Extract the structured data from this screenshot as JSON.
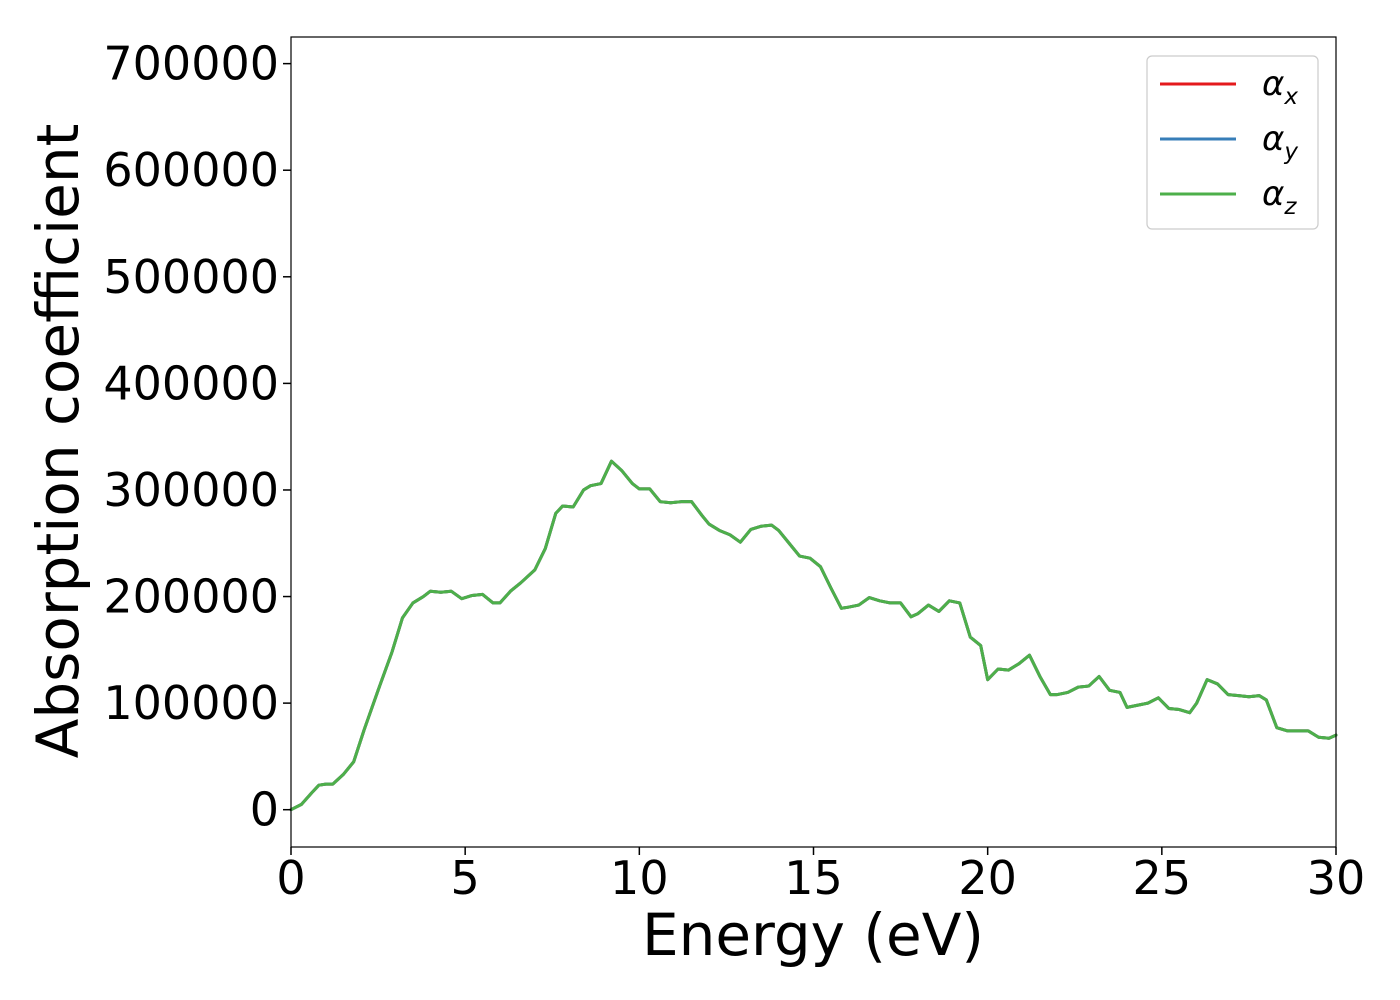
{
  "chart_data": {
    "type": "line",
    "title": "",
    "xlabel": "Energy (eV)",
    "ylabel": "Absorption coefficient",
    "xlim": [
      0,
      30
    ],
    "ylim": [
      -35000,
      725000
    ],
    "x_ticks": [
      0,
      5,
      10,
      15,
      20,
      25,
      30
    ],
    "y_ticks": [
      0,
      100000,
      200000,
      300000,
      400000,
      500000,
      600000,
      700000
    ],
    "grid": false,
    "legend_position": "top-right",
    "x": [
      0,
      0.3,
      0.6,
      0.8,
      1.0,
      1.2,
      1.5,
      1.8,
      2.1,
      2.5,
      2.9,
      3.2,
      3.5,
      3.8,
      4.0,
      4.3,
      4.6,
      4.9,
      5.2,
      5.5,
      5.8,
      6.0,
      6.3,
      6.6,
      7.0,
      7.3,
      7.6,
      7.8,
      8.1,
      8.4,
      8.6,
      8.9,
      9.2,
      9.5,
      9.8,
      10.0,
      10.3,
      10.6,
      10.9,
      11.2,
      11.5,
      11.8,
      12.0,
      12.3,
      12.6,
      12.9,
      13.2,
      13.5,
      13.8,
      14.0,
      14.3,
      14.6,
      14.9,
      15.2,
      15.5,
      15.8,
      16.0,
      16.3,
      16.6,
      16.9,
      17.2,
      17.5,
      17.8,
      18.0,
      18.3,
      18.6,
      18.9,
      19.2,
      19.5,
      19.8,
      20.0,
      20.3,
      20.6,
      20.9,
      21.2,
      21.5,
      21.8,
      22.0,
      22.3,
      22.6,
      22.9,
      23.2,
      23.5,
      23.8,
      24.0,
      24.3,
      24.6,
      24.9,
      25.2,
      25.5,
      25.8,
      26.0,
      26.3,
      26.6,
      26.9,
      27.2,
      27.5,
      27.8,
      28.0,
      28.3,
      28.6,
      28.9,
      29.2,
      29.5,
      29.8,
      30.0
    ],
    "series": [
      {
        "name": "α_x",
        "color": "#e41a1c",
        "values": [
          0,
          5000,
          16000,
          23000,
          24000,
          24000,
          33000,
          45000,
          75000,
          112000,
          148000,
          180000,
          194000,
          200000,
          205000,
          204000,
          205000,
          198000,
          201000,
          202000,
          194000,
          194000,
          205000,
          213000,
          225000,
          245000,
          278000,
          285000,
          284000,
          300000,
          304000,
          306000,
          327000,
          318000,
          306000,
          301000,
          301000,
          289000,
          288000,
          289000,
          289000,
          276000,
          268000,
          262000,
          258000,
          251000,
          263000,
          266000,
          267000,
          262000,
          250000,
          238000,
          236000,
          228000,
          208000,
          189000,
          190000,
          192000,
          199000,
          196000,
          194000,
          194000,
          181000,
          184000,
          192000,
          186000,
          196000,
          194000,
          162000,
          154000,
          122000,
          132000,
          131000,
          137000,
          145000,
          125000,
          108000,
          108000,
          110000,
          115000,
          116000,
          125000,
          112000,
          110000,
          96000,
          98000,
          100000,
          105000,
          95000,
          94000,
          91000,
          100000,
          122000,
          118000,
          108000,
          107000,
          106000,
          107000,
          103000,
          77000,
          74000,
          74000,
          74000,
          68000,
          67000,
          70000
        ]
      },
      {
        "name": "α_y",
        "color": "#377eb8",
        "values": [
          0,
          5000,
          16000,
          23000,
          24000,
          24000,
          33000,
          45000,
          75000,
          112000,
          148000,
          180000,
          194000,
          200000,
          205000,
          204000,
          205000,
          198000,
          201000,
          202000,
          194000,
          194000,
          205000,
          213000,
          225000,
          245000,
          278000,
          285000,
          284000,
          300000,
          304000,
          306000,
          327000,
          318000,
          306000,
          301000,
          301000,
          289000,
          288000,
          289000,
          289000,
          276000,
          268000,
          262000,
          258000,
          251000,
          263000,
          266000,
          267000,
          262000,
          250000,
          238000,
          236000,
          228000,
          208000,
          189000,
          190000,
          192000,
          199000,
          196000,
          194000,
          194000,
          181000,
          184000,
          192000,
          186000,
          196000,
          194000,
          162000,
          154000,
          122000,
          132000,
          131000,
          137000,
          145000,
          125000,
          108000,
          108000,
          110000,
          115000,
          116000,
          125000,
          112000,
          110000,
          96000,
          98000,
          100000,
          105000,
          95000,
          94000,
          91000,
          100000,
          122000,
          118000,
          108000,
          107000,
          106000,
          107000,
          103000,
          77000,
          74000,
          74000,
          74000,
          68000,
          67000,
          70000
        ]
      },
      {
        "name": "α_z",
        "color": "#4daf4a",
        "values": [
          0,
          5000,
          16000,
          23000,
          24000,
          24000,
          33000,
          45000,
          75000,
          112000,
          148000,
          180000,
          194000,
          200000,
          205000,
          204000,
          205000,
          198000,
          201000,
          202000,
          194000,
          194000,
          205000,
          213000,
          225000,
          245000,
          278000,
          285000,
          284000,
          300000,
          304000,
          306000,
          327000,
          318000,
          306000,
          301000,
          301000,
          289000,
          288000,
          289000,
          289000,
          276000,
          268000,
          262000,
          258000,
          251000,
          263000,
          266000,
          267000,
          262000,
          250000,
          238000,
          236000,
          228000,
          208000,
          189000,
          190000,
          192000,
          199000,
          196000,
          194000,
          194000,
          181000,
          184000,
          192000,
          186000,
          196000,
          194000,
          162000,
          154000,
          122000,
          132000,
          131000,
          137000,
          145000,
          125000,
          108000,
          108000,
          110000,
          115000,
          116000,
          125000,
          112000,
          110000,
          96000,
          98000,
          100000,
          105000,
          95000,
          94000,
          91000,
          100000,
          122000,
          118000,
          108000,
          107000,
          106000,
          107000,
          103000,
          77000,
          74000,
          74000,
          74000,
          68000,
          67000,
          70000
        ]
      }
    ]
  },
  "legend": {
    "items": [
      {
        "symbol": "α",
        "sub": "x"
      },
      {
        "symbol": "α",
        "sub": "y"
      },
      {
        "symbol": "α",
        "sub": "z"
      }
    ]
  }
}
